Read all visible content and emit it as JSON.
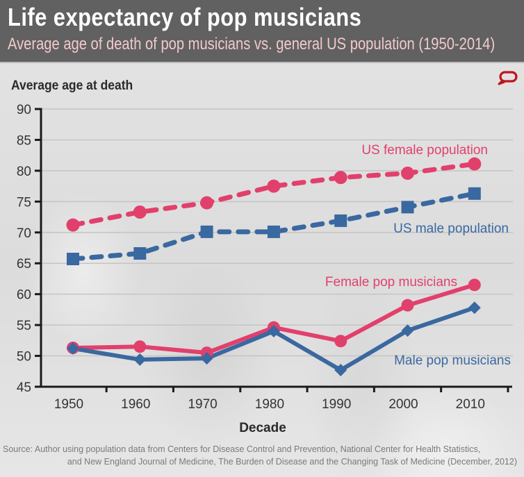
{
  "header": {
    "title": "Life expectancy of pop musicians",
    "subtitle": "Average age of death of pop musicians vs. general US population (1950-2014)"
  },
  "logo": {
    "icon": "speech-bubble-icon",
    "color": "#c0141c"
  },
  "source": {
    "line1": "Source: Author using population data from Centers for Disease Control and Prevention, National Center for Health Statistics,",
    "line2": "and New England Journal of Medicine, The Burden of Disease and the Changing Task of Medicine (December, 2012)"
  },
  "colors": {
    "female": "#e2406c",
    "male": "#3a68a0",
    "header_bg": "#616161",
    "subtitle": "#f3c9cb"
  },
  "chart_data": {
    "type": "line",
    "title": "Life expectancy of pop musicians",
    "subtitle": "Average age of death of pop musicians vs. general US population (1950-2014)",
    "xlabel": "Decade",
    "ylabel": "Average age at death",
    "x": [
      1950,
      1960,
      1970,
      1980,
      1990,
      2000,
      2010
    ],
    "x_tick_labels": [
      "1950",
      "1960",
      "1970",
      "1980",
      "1990",
      "2000",
      "2010"
    ],
    "y_ticks": [
      45,
      50,
      55,
      60,
      65,
      70,
      75,
      80,
      85,
      90
    ],
    "ylim": [
      45,
      90
    ],
    "grid": true,
    "legend": "inline labels",
    "series": [
      {
        "name": "US female population",
        "style": "dashed",
        "marker": "circle",
        "color": "#e2406c",
        "values": [
          71.2,
          73.3,
          74.8,
          77.5,
          78.9,
          79.6,
          81.1
        ]
      },
      {
        "name": "US male population",
        "style": "dashed",
        "marker": "square",
        "color": "#3a68a0",
        "values": [
          65.7,
          66.6,
          70.1,
          70.1,
          71.9,
          74.1,
          76.3
        ]
      },
      {
        "name": "Female pop musicians",
        "style": "solid",
        "marker": "circle",
        "color": "#e2406c",
        "values": [
          51.3,
          51.5,
          50.5,
          54.6,
          52.4,
          58.2,
          61.5
        ]
      },
      {
        "name": "Male pop musicians",
        "style": "solid",
        "marker": "diamond",
        "color": "#3a68a0",
        "values": [
          51.2,
          49.4,
          49.6,
          54.0,
          47.7,
          54.1,
          57.8
        ]
      }
    ]
  }
}
